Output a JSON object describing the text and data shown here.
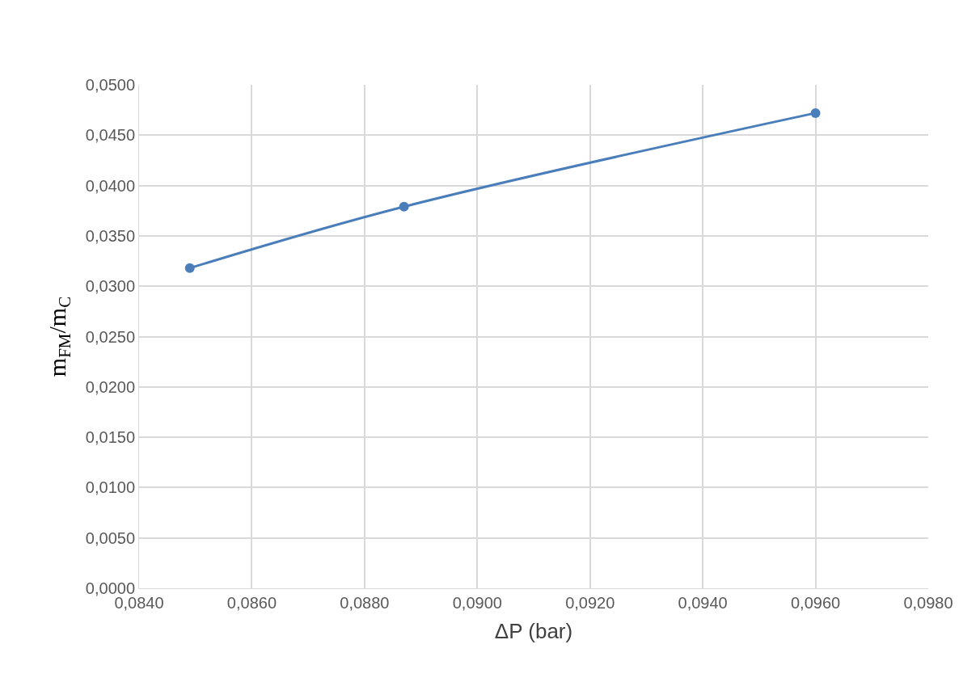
{
  "chart_data": {
    "type": "line",
    "xlabel": "ΔP (bar)",
    "ylabel": "m$_{FM}$/m$_{C}$",
    "x": [
      0.0849,
      0.0887,
      0.096
    ],
    "series": [
      {
        "color": "#4a7ebb",
        "values": [
          0.0318,
          0.0379,
          0.0472
        ]
      }
    ],
    "xlim": [
      0.084,
      0.098
    ],
    "xticks": [
      {
        "value": 0.084,
        "label": "0,0840"
      },
      {
        "value": 0.086,
        "label": "0,0860"
      },
      {
        "value": 0.088,
        "label": "0,0880"
      },
      {
        "value": 0.09,
        "label": "0,0900"
      },
      {
        "value": 0.092,
        "label": "0,0920"
      },
      {
        "value": 0.094,
        "label": "0,0940"
      },
      {
        "value": 0.096,
        "label": "0,0960"
      },
      {
        "value": 0.098,
        "label": "0,0980"
      }
    ],
    "ylim": [
      0,
      0.05
    ],
    "yticks": [
      {
        "value": 0,
        "label": "0,0000"
      },
      {
        "value": 0.005,
        "label": "0,0050"
      },
      {
        "value": 0.01,
        "label": "0,0100"
      },
      {
        "value": 0.015,
        "label": "0,0150"
      },
      {
        "value": 0.02,
        "label": "0,0200"
      },
      {
        "value": 0.025,
        "label": "0,0250"
      },
      {
        "value": 0.03,
        "label": "0,0300"
      },
      {
        "value": 0.035,
        "label": "0,0350"
      },
      {
        "value": 0.04,
        "label": "0,0400"
      },
      {
        "value": 0.045,
        "label": "0,0450"
      },
      {
        "value": 0.05,
        "label": "0,0500"
      }
    ],
    "grid": true,
    "marker": "circle",
    "line_style": "solid",
    "legend": false
  }
}
